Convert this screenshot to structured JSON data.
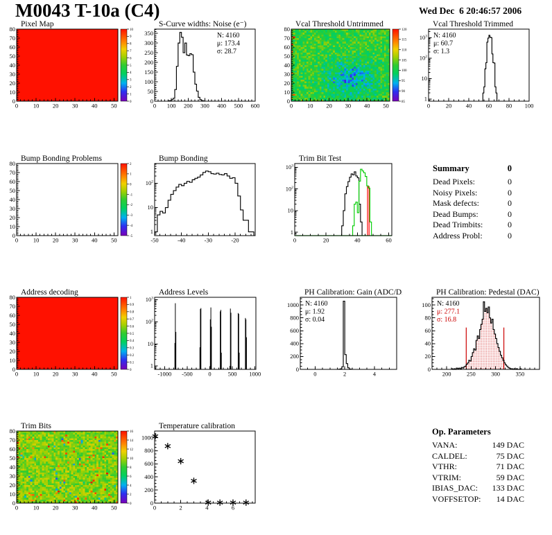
{
  "page": {
    "title": "M0043 T-10a (C4)",
    "date": "Wed Dec  6 20:46:57 2006"
  },
  "summary": {
    "heading": "Summary",
    "heading_value": "0",
    "rows": [
      {
        "label": "Dead Pixels:",
        "value": "0"
      },
      {
        "label": "Noisy Pixels:",
        "value": "0"
      },
      {
        "label": "Mask defects:",
        "value": "0"
      },
      {
        "label": "Dead Bumps:",
        "value": "0"
      },
      {
        "label": "Dead Trimbits:",
        "value": "0"
      },
      {
        "label": "Address Probl:",
        "value": "0"
      }
    ]
  },
  "op_parameters": {
    "heading": "Op. Parameters",
    "rows": [
      {
        "label": "VANA:",
        "value": "149 DAC"
      },
      {
        "label": "CALDEL:",
        "value": "75 DAC"
      },
      {
        "label": "VTHR:",
        "value": "71 DAC"
      },
      {
        "label": "VTRIM:",
        "value": "59 DAC"
      },
      {
        "label": "IBIAS_DAC:",
        "value": "133 DAC"
      },
      {
        "label": "VOFFSETOP:",
        "value": "14 DAC"
      }
    ]
  },
  "chart_data": [
    {
      "id": "pixel-map",
      "type": "heatmap",
      "title": "Pixel Map",
      "fill": "solid",
      "xlim": [
        0,
        52
      ],
      "ylim": [
        0,
        80
      ],
      "xticks": [
        0,
        10,
        20,
        30,
        40,
        50
      ],
      "yticks": [
        0,
        10,
        20,
        30,
        40,
        50,
        60,
        70,
        80
      ],
      "xminor": 2,
      "yminor": 2,
      "colorbar": {
        "min": 0,
        "max": 10,
        "ticks": [
          0,
          1,
          2,
          3,
          4,
          5,
          6,
          7,
          8,
          9,
          10
        ]
      }
    },
    {
      "id": "scurve-noise",
      "type": "histogram",
      "title": "S-Curve widths: Noise (e⁻)",
      "ylog": false,
      "xlim": [
        0,
        600
      ],
      "ylim": [
        0,
        372
      ],
      "xticks": [
        0,
        100,
        200,
        300,
        400,
        500,
        600
      ],
      "yticks": [
        0,
        50,
        100,
        150,
        200,
        250,
        300,
        350
      ],
      "xminor": 20,
      "yminor": 10,
      "stats": {
        "pos": "tr",
        "lines": [
          {
            "t": "N: 4160",
            "c": "#000000"
          },
          {
            "t": "μ: 173.4",
            "c": "#000000"
          },
          {
            "t": "σ: 28.7",
            "c": "#000000"
          }
        ]
      },
      "series": [
        {
          "color": "#000000",
          "x0": 80,
          "binw": 10,
          "values": [
            2,
            3,
            8,
            15,
            60,
            180,
            300,
            355,
            330,
            250,
            300,
            238,
            235,
            245,
            240,
            150,
            88,
            52,
            20,
            8,
            3,
            1
          ]
        }
      ]
    },
    {
      "id": "vcal-untrimmed",
      "type": "heatmap",
      "title": "Vcal Threshold Untrimmed",
      "fill": "noise",
      "xlim": [
        0,
        52
      ],
      "ylim": [
        0,
        80
      ],
      "xticks": [
        0,
        10,
        20,
        30,
        40,
        50
      ],
      "yticks": [
        0,
        10,
        20,
        30,
        40,
        50,
        60,
        70,
        80
      ],
      "xminor": 2,
      "yminor": 2,
      "noise": {
        "kind": "vcal",
        "seed": 42,
        "base": 102,
        "spread": 4.5,
        "vmin": 85,
        "vmax": 120
      },
      "colorbar": {
        "min": 85,
        "max": 120,
        "ticks": [
          85,
          90,
          95,
          100,
          105,
          110,
          115,
          120
        ]
      }
    },
    {
      "id": "vcal-trimmed",
      "type": "histogram",
      "title": "Vcal Threshold Trimmed",
      "ylog": true,
      "xlim": [
        0,
        100
      ],
      "ylim": [
        0.8,
        2600
      ],
      "xticks": [
        0,
        20,
        40,
        60,
        80,
        100
      ],
      "xminor": 5,
      "stats": {
        "pos": "tl",
        "lines": [
          {
            "t": "N: 4160",
            "c": "#000000"
          },
          {
            "t": "μ: 60.7",
            "c": "#000000"
          },
          {
            "t": "σ:  1.3",
            "c": "#000000"
          }
        ]
      },
      "series": [
        {
          "color": "#000000",
          "x0": 54,
          "binw": 1,
          "values": [
            2,
            4,
            30,
            60,
            600,
            950,
            1300,
            1050,
            1000,
            160,
            60,
            58,
            4,
            2
          ]
        }
      ]
    },
    {
      "id": "bump-problems",
      "type": "heatmap",
      "title": "Bump Bonding Problems",
      "fill": "empty",
      "xlim": [
        0,
        52
      ],
      "ylim": [
        0,
        80
      ],
      "xticks": [
        0,
        10,
        20,
        30,
        40,
        50
      ],
      "yticks": [
        0,
        10,
        20,
        30,
        40,
        50,
        60,
        70,
        80
      ],
      "xminor": 2,
      "yminor": 2,
      "colorbar": {
        "min": -5,
        "max": 2,
        "ticks": [
          -5,
          -4,
          -3,
          -2,
          -1,
          0,
          1,
          2
        ]
      }
    },
    {
      "id": "bump-bonding",
      "type": "histogram",
      "title": "Bump Bonding",
      "ylog": true,
      "xlim": [
        -50,
        -12.5
      ],
      "ylim": [
        0.7,
        650
      ],
      "xticks": [
        -50,
        -40,
        -30,
        -20
      ],
      "xminor": 2,
      "series": [
        {
          "color": "#000000",
          "x0": -50,
          "binw": 1,
          "values": [
            1,
            5,
            7,
            6,
            10,
            20,
            35,
            50,
            70,
            90,
            80,
            100,
            120,
            110,
            140,
            160,
            180,
            220,
            280,
            320,
            300,
            250,
            240,
            260,
            230,
            220,
            250,
            200,
            160,
            170,
            100,
            30,
            8,
            3,
            3,
            1,
            1
          ]
        }
      ]
    },
    {
      "id": "trim-bit-test",
      "type": "histogram",
      "title": "Trim Bit Test",
      "ylog": true,
      "xlim": [
        0,
        62
      ],
      "ylim": [
        0.7,
        1500
      ],
      "xticks": [
        0,
        20,
        40,
        60
      ],
      "xminor": 5,
      "series": [
        {
          "color": "#ff0000",
          "x0": 46.5,
          "binw": 1,
          "values": [
            130
          ]
        },
        {
          "color": "#000000",
          "x0": 30,
          "binw": 1,
          "values": [
            2,
            10,
            60,
            130,
            220,
            350,
            500,
            450,
            620,
            400,
            330,
            20,
            3
          ]
        },
        {
          "color": "#00cc00",
          "x0": 37,
          "binw": 1,
          "baseline_full": true,
          "values": [
            2,
            20,
            25,
            8,
            230,
            820,
            680,
            560,
            380,
            140,
            110,
            3
          ]
        }
      ]
    },
    {
      "id": "address-decoding",
      "type": "heatmap",
      "title": "Address decoding",
      "fill": "solid",
      "xlim": [
        0,
        52
      ],
      "ylim": [
        0,
        80
      ],
      "xticks": [
        0,
        10,
        20,
        30,
        40,
        50
      ],
      "yticks": [
        0,
        10,
        20,
        30,
        40,
        50,
        60,
        70,
        80
      ],
      "xminor": 2,
      "yminor": 2,
      "colorbar": {
        "min": 0,
        "max": 1,
        "ticks": [
          0,
          0.1,
          0.2,
          0.3,
          0.4,
          0.5,
          0.6,
          0.7,
          0.8,
          0.9,
          1
        ]
      }
    },
    {
      "id": "address-levels",
      "type": "spikes",
      "title": "Address Levels",
      "ylog": true,
      "xlim": [
        -1220,
        1020
      ],
      "ylim": [
        0.7,
        1300
      ],
      "xticks": [
        -1000,
        -500,
        0,
        500,
        1000
      ],
      "xminor": 100,
      "spikes": [
        [
          -772,
          11
        ],
        [
          -762,
          700
        ],
        [
          -750,
          35
        ],
        [
          -218,
          7
        ],
        [
          -208,
          380
        ],
        [
          -196,
          420
        ],
        [
          12,
          130
        ],
        [
          24,
          450
        ],
        [
          36,
          60
        ],
        [
          232,
          300
        ],
        [
          244,
          350
        ],
        [
          256,
          4
        ],
        [
          444,
          1
        ],
        [
          456,
          400
        ],
        [
          468,
          260
        ],
        [
          628,
          250
        ],
        [
          640,
          230
        ],
        [
          652,
          4
        ],
        [
          788,
          150
        ],
        [
          800,
          130
        ],
        [
          812,
          20
        ]
      ]
    },
    {
      "id": "ph-gain",
      "type": "histogram",
      "title": "PH Calibration: Gain (ADC/DAC)",
      "ylog": false,
      "xlim": [
        -1,
        5.5
      ],
      "ylim": [
        0,
        1120
      ],
      "xticks": [
        0,
        2,
        4
      ],
      "yticks": [
        0,
        200,
        400,
        600,
        800,
        1000
      ],
      "xminor": 0.5,
      "yminor": 50,
      "stats": {
        "pos": "tl",
        "lines": [
          {
            "t": "N: 4160",
            "c": "#000000"
          },
          {
            "t": "μ: 1.92",
            "c": "#000000"
          },
          {
            "t": "σ: 0.04",
            "c": "#000000"
          }
        ]
      },
      "series": [
        {
          "color": "#000000",
          "x0": 1.5,
          "binw": 0.1,
          "values": [
            1,
            3,
            8,
            40,
            1060,
            230,
            90,
            25,
            6,
            2
          ]
        }
      ]
    },
    {
      "id": "ph-pedestal",
      "type": "histogram",
      "title": "PH Calibration: Pedestal (DAC)",
      "ylog": false,
      "xlim": [
        170,
        390
      ],
      "ylim": [
        0,
        112
      ],
      "xticks": [
        200,
        250,
        300,
        350
      ],
      "yticks": [
        0,
        20,
        40,
        60,
        80,
        100
      ],
      "xminor": 10,
      "yminor": 5,
      "stats": {
        "pos": "tl",
        "lines": [
          {
            "t": "N: 4160",
            "c": "#000000"
          },
          {
            "t": "μ: 277.1",
            "c": "#cc0000"
          },
          {
            "t": "σ: 16.8",
            "c": "#cc0000"
          }
        ]
      },
      "fill_between": {
        "x1": 240,
        "x2": 317,
        "color": "#cc0000"
      },
      "vlines": [
        {
          "x": 240,
          "h": 65,
          "color": "#cc0000"
        },
        {
          "x": 317,
          "h": 65,
          "color": "#cc0000"
        }
      ],
      "series": [
        {
          "color": "#000000",
          "x0": 210,
          "binw": 2.5,
          "values": [
            1,
            0,
            1,
            0,
            2,
            1,
            2,
            1,
            3,
            2,
            4,
            5,
            8,
            10,
            14,
            13,
            20,
            26,
            32,
            30,
            45,
            52,
            48,
            62,
            70,
            78,
            105,
            90,
            95,
            88,
            97,
            80,
            72,
            78,
            62,
            55,
            48,
            40,
            34,
            28,
            22,
            18,
            14,
            10,
            7,
            5,
            3,
            2,
            1,
            1,
            0,
            1,
            0,
            1,
            0,
            0,
            1
          ]
        }
      ]
    },
    {
      "id": "trim-bits",
      "type": "heatmap",
      "title": "Trim Bits",
      "fill": "noise",
      "xlim": [
        0,
        52
      ],
      "ylim": [
        0,
        80
      ],
      "xticks": [
        0,
        10,
        20,
        30,
        40,
        50
      ],
      "yticks": [
        0,
        10,
        20,
        30,
        40,
        50,
        60,
        70,
        80
      ],
      "xminor": 2,
      "yminor": 2,
      "noise": {
        "kind": "trim",
        "seed": 1337,
        "base": 9.4,
        "spread": 1.5,
        "vmin": 0,
        "vmax": 16
      },
      "colorbar": {
        "min": 0,
        "max": 16,
        "ticks": [
          0,
          2,
          4,
          6,
          8,
          10,
          12,
          14,
          16
        ]
      }
    },
    {
      "id": "temp-cal",
      "type": "scatter",
      "title": "Temperature calibration",
      "ylog": false,
      "xlim": [
        0,
        7.7
      ],
      "ylim": [
        0,
        1100
      ],
      "xticks": [
        0,
        2,
        4,
        6
      ],
      "yticks": [
        0,
        200,
        400,
        600,
        800,
        1000
      ],
      "xminor": 0.5,
      "yminor": 50,
      "marker": "asterisk",
      "points": [
        [
          0.05,
          1020
        ],
        [
          1,
          870
        ],
        [
          2,
          640
        ],
        [
          3,
          340
        ],
        [
          4.1,
          8
        ],
        [
          5,
          8
        ],
        [
          6,
          8
        ],
        [
          7,
          8
        ]
      ]
    }
  ]
}
